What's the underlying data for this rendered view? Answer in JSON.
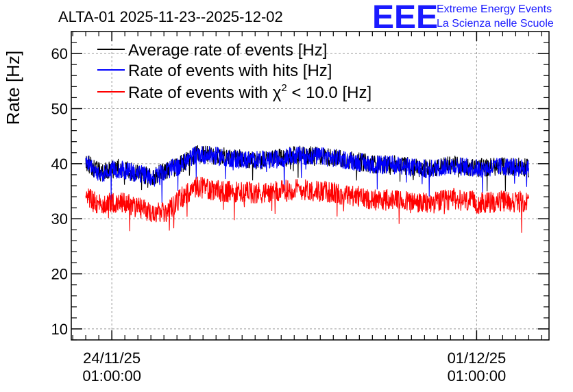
{
  "colors": {
    "series_average": "#000000",
    "series_hits": "#0000ff",
    "series_chi2": "#ff0000",
    "logo": "#1a1aff",
    "grid": "#9a9a9a"
  },
  "logo": {
    "mark": "EEE",
    "line1": "Extreme Energy Events",
    "line2": "La Scienza nelle Scuole"
  },
  "chart_data": {
    "type": "line",
    "title": "ALTA-01 2025-11-23--2025-12-02",
    "ylabel": "Rate [Hz]",
    "xlabel": "",
    "ylim": [
      8,
      64
    ],
    "xlim": [
      "2025-11-23T06:20:00",
      "2025-12-02T10:20:00"
    ],
    "yticks": [
      10,
      20,
      30,
      40,
      50,
      60
    ],
    "xticks": [
      {
        "at": "2025-11-24T01:00:00",
        "line1": "24/11/25",
        "line2": "01:00:00"
      },
      {
        "at": "2025-12-01T01:00:00",
        "line1": "01/12/25",
        "line2": "01:00:00"
      }
    ],
    "grid": true,
    "legend_position": "top-left",
    "series": [
      {
        "name": "Average rate of events [Hz]",
        "key": "series_average",
        "x": [
          "2025-11-23T13:00:00",
          "2025-11-23T20:00:00",
          "2025-11-24T04:00:00",
          "2025-11-24T12:00:00",
          "2025-11-24T20:00:00",
          "2025-11-25T03:00:00",
          "2025-11-25T08:00:00",
          "2025-11-25T16:00:00",
          "2025-11-26T02:00:00",
          "2025-11-26T14:00:00",
          "2025-11-27T02:00:00",
          "2025-11-27T14:00:00",
          "2025-11-28T02:00:00",
          "2025-11-28T14:00:00",
          "2025-11-29T02:00:00",
          "2025-11-29T14:00:00",
          "2025-11-30T02:00:00",
          "2025-11-30T14:00:00",
          "2025-12-01T02:00:00",
          "2025-12-01T14:00:00",
          "2025-12-02T01:00:00"
        ],
        "y": [
          40.2,
          38.3,
          39.2,
          38.4,
          37.6,
          39.0,
          39.6,
          41.9,
          41.4,
          40.8,
          40.7,
          41.6,
          41.4,
          40.7,
          39.9,
          39.8,
          39.1,
          39.8,
          39.2,
          39.6,
          39.2
        ]
      },
      {
        "name": "Rate of events with hits [Hz]",
        "key": "series_hits",
        "x": [
          "2025-11-23T13:00:00",
          "2025-11-23T20:00:00",
          "2025-11-24T04:00:00",
          "2025-11-24T12:00:00",
          "2025-11-24T20:00:00",
          "2025-11-25T03:00:00",
          "2025-11-25T08:00:00",
          "2025-11-25T16:00:00",
          "2025-11-26T02:00:00",
          "2025-11-26T14:00:00",
          "2025-11-27T02:00:00",
          "2025-11-27T14:00:00",
          "2025-11-28T02:00:00",
          "2025-11-28T14:00:00",
          "2025-11-29T02:00:00",
          "2025-11-29T14:00:00",
          "2025-11-30T02:00:00",
          "2025-11-30T14:00:00",
          "2025-12-01T02:00:00",
          "2025-12-01T14:00:00",
          "2025-12-02T01:00:00"
        ],
        "y": [
          40.0,
          38.2,
          39.0,
          38.3,
          37.5,
          38.9,
          39.5,
          41.8,
          41.3,
          40.7,
          40.6,
          41.5,
          41.3,
          40.6,
          39.8,
          39.7,
          39.0,
          39.7,
          39.1,
          39.5,
          39.1
        ]
      },
      {
        "name": "Rate of events with χ2 < 10.0 [Hz]",
        "key": "series_chi2",
        "x": [
          "2025-11-23T13:00:00",
          "2025-11-23T20:00:00",
          "2025-11-24T04:00:00",
          "2025-11-24T12:00:00",
          "2025-11-24T20:00:00",
          "2025-11-25T03:00:00",
          "2025-11-25T08:00:00",
          "2025-11-25T16:00:00",
          "2025-11-26T02:00:00",
          "2025-11-26T14:00:00",
          "2025-11-27T02:00:00",
          "2025-11-27T14:00:00",
          "2025-11-28T02:00:00",
          "2025-11-28T14:00:00",
          "2025-11-29T02:00:00",
          "2025-11-29T14:00:00",
          "2025-11-30T02:00:00",
          "2025-11-30T14:00:00",
          "2025-12-01T02:00:00",
          "2025-12-01T14:00:00",
          "2025-12-02T01:00:00"
        ],
        "y": [
          33.8,
          32.5,
          33.2,
          32.2,
          31.0,
          31.5,
          33.5,
          35.8,
          35.0,
          34.8,
          34.7,
          35.4,
          35.0,
          34.3,
          33.5,
          33.3,
          32.7,
          33.6,
          32.8,
          33.2,
          33.0
        ]
      }
    ]
  }
}
